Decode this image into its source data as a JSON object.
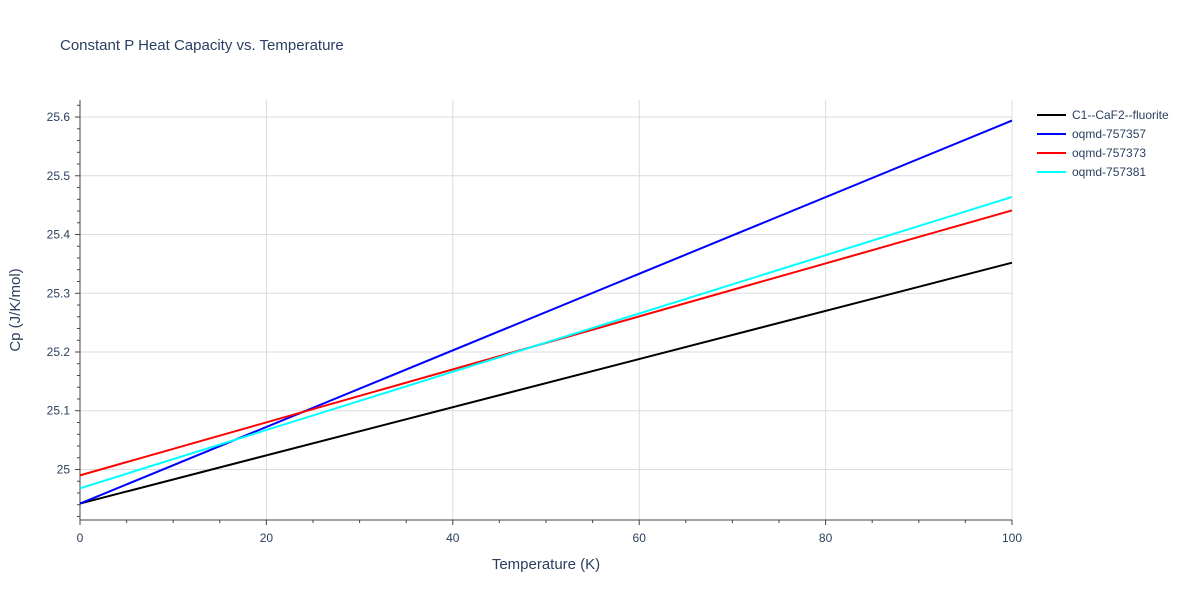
{
  "chart_data": {
    "type": "line",
    "title": "Constant P Heat Capacity vs. Temperature",
    "xlabel": "Temperature (K)",
    "ylabel": "Cp (J/K/mol)",
    "xlim": [
      0,
      100
    ],
    "ylim": [
      24.914,
      25.629
    ],
    "xticks": [
      0,
      20,
      40,
      60,
      80,
      100
    ],
    "yticks": [
      25,
      25.1,
      25.2,
      25.3,
      25.4,
      25.5,
      25.6
    ],
    "ytick_labels": [
      "25",
      "25.1",
      "25.2",
      "25.3",
      "25.4",
      "25.5",
      "25.6"
    ],
    "grid": true,
    "legend_position": "top-right",
    "series": [
      {
        "name": "C1--CaF2--fluorite",
        "color": "#000000",
        "x": [
          0,
          100
        ],
        "y": [
          24.942,
          25.352
        ]
      },
      {
        "name": "oqmd-757357",
        "color": "#0000ff",
        "x": [
          0,
          100
        ],
        "y": [
          24.942,
          25.594
        ]
      },
      {
        "name": "oqmd-757373",
        "color": "#ff0000",
        "x": [
          0,
          100
        ],
        "y": [
          24.99,
          25.441
        ]
      },
      {
        "name": "oqmd-757381",
        "color": "#00ffff",
        "x": [
          0,
          100
        ],
        "y": [
          24.968,
          25.464
        ]
      }
    ]
  }
}
